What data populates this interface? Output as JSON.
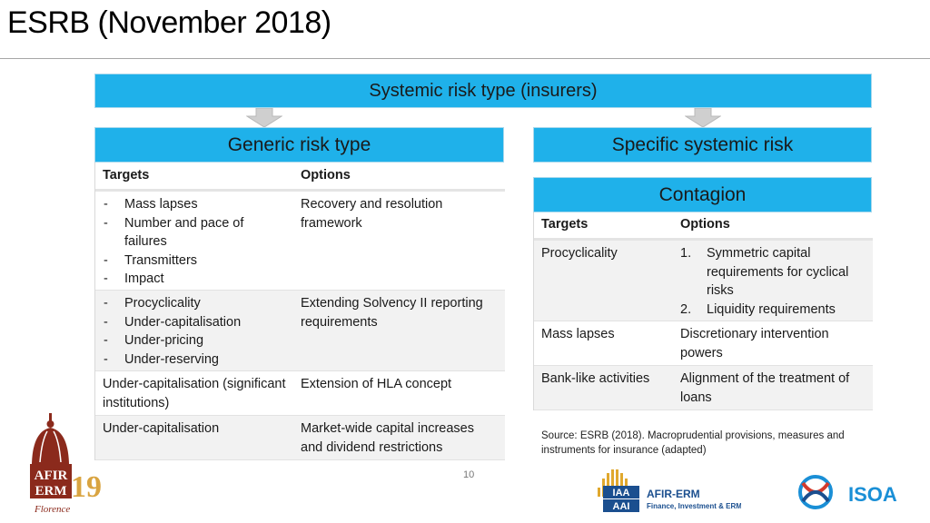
{
  "slide": {
    "title": "ESRB (November 2018)",
    "page_number": "10"
  },
  "top_banner": "Systemic risk type (insurers)",
  "generic": {
    "title": "Generic risk type",
    "headers": {
      "targets": "Targets",
      "options": "Options"
    },
    "rows": [
      {
        "targets": [
          "Mass lapses",
          "Number and pace of failures",
          "Transmitters",
          "Impact"
        ],
        "options": "Recovery and resolution framework"
      },
      {
        "targets": [
          "Procyclicality",
          "Under-capitalisation",
          "Under-pricing",
          "Under-reserving"
        ],
        "options": "Extending Solvency II reporting requirements"
      },
      {
        "targets_text": "Under-capitalisation (significant institutions)",
        "options": "Extension of HLA concept"
      },
      {
        "targets_text": "Under-capitalisation",
        "options": "Market-wide capital increases and dividend restrictions"
      }
    ]
  },
  "specific": {
    "title": "Specific systemic risk",
    "contagion": {
      "title": "Contagion",
      "headers": {
        "targets": "Targets",
        "options": "Options"
      },
      "rows": [
        {
          "target": "Procyclicality",
          "options_list": [
            {
              "num": "1.",
              "text": "Symmetric capital requirements for cyclical risks"
            },
            {
              "num": "2.",
              "text": "Liquidity requirements"
            }
          ]
        },
        {
          "target": "Mass lapses",
          "options": "Discretionary intervention powers"
        },
        {
          "target": "Bank-like activities",
          "options": "Alignment of the treatment of loans"
        }
      ]
    }
  },
  "source": "Source: ESRB (2018). Macroprudential provisions, measures and instruments for insurance (adapted)",
  "logos": {
    "afir": {
      "line1": "AFIR",
      "line2": "ERM",
      "year": "19",
      "city": "Florence"
    },
    "iaa": {
      "mark_top": "IAA",
      "mark_bottom": "AAI",
      "name": "AFIR-ERM",
      "tagline": "Finance, Investment & ERM"
    },
    "isoa": {
      "name": "ISOA"
    }
  },
  "colors": {
    "banner": "#1fb1ea",
    "shade": "#f2f2f2",
    "afir": "#8b2a1c",
    "afir_year": "#d9a441",
    "iaa_blue": "#1b4f8f",
    "isoa_blue": "#1a8fd6"
  }
}
